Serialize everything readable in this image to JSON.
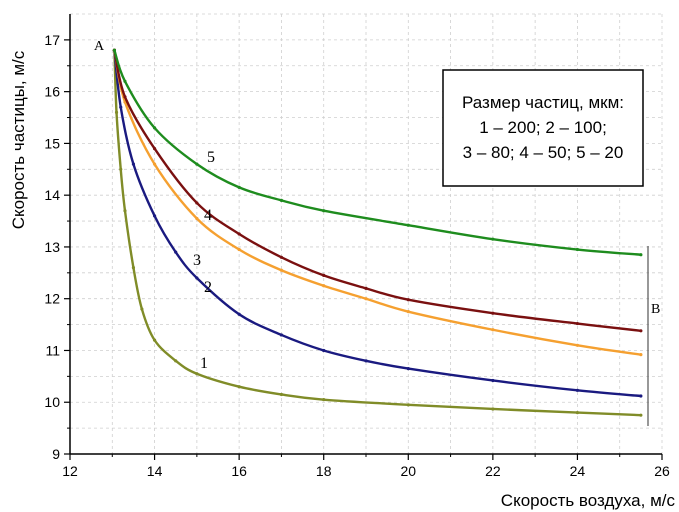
{
  "chart_data": {
    "type": "line",
    "xlabel": "Скорость воздуха, м/с",
    "ylabel": "Скорость частицы, м/с",
    "xlim": [
      12,
      26
    ],
    "ylim": [
      9,
      17.5
    ],
    "xticks": [
      12,
      14,
      16,
      18,
      20,
      22,
      24,
      26
    ],
    "yticks": [
      9,
      10,
      11,
      12,
      13,
      14,
      15,
      16,
      17
    ],
    "grid": true,
    "grid_style": "dashed",
    "legend_box": {
      "lines": [
        "Размер частиц, мкм:",
        "1 – 200; 2 – 100;",
        "3 – 80; 4 – 50; 5 – 20"
      ],
      "placement": "top-right"
    },
    "point_labels": {
      "start": "A",
      "end": "B"
    },
    "series": [
      {
        "label": "1",
        "color": "#808c28",
        "points": [
          [
            13.05,
            16.8
          ],
          [
            13.1,
            15.6
          ],
          [
            13.2,
            14.5
          ],
          [
            13.3,
            13.7
          ],
          [
            13.5,
            12.6
          ],
          [
            13.7,
            11.8
          ],
          [
            14.0,
            11.2
          ],
          [
            14.5,
            10.8
          ],
          [
            15.0,
            10.55
          ],
          [
            16.0,
            10.3
          ],
          [
            17.0,
            10.15
          ],
          [
            18.0,
            10.05
          ],
          [
            20.0,
            9.95
          ],
          [
            22.0,
            9.87
          ],
          [
            24.0,
            9.8
          ],
          [
            25.5,
            9.75
          ]
        ]
      },
      {
        "label": "2",
        "color": "#1a1a80",
        "points": [
          [
            13.05,
            16.8
          ],
          [
            13.2,
            15.7
          ],
          [
            13.5,
            14.6
          ],
          [
            14.0,
            13.6
          ],
          [
            14.5,
            12.9
          ],
          [
            15.0,
            12.4
          ],
          [
            16.0,
            11.7
          ],
          [
            17.0,
            11.3
          ],
          [
            18.0,
            11.0
          ],
          [
            19.0,
            10.8
          ],
          [
            20.0,
            10.65
          ],
          [
            22.0,
            10.42
          ],
          [
            24.0,
            10.23
          ],
          [
            25.5,
            10.12
          ]
        ]
      },
      {
        "label": "3",
        "color": "#f5a030",
        "points": [
          [
            13.05,
            16.8
          ],
          [
            13.3,
            15.8
          ],
          [
            14.0,
            14.6
          ],
          [
            15.0,
            13.55
          ],
          [
            16.0,
            12.95
          ],
          [
            17.0,
            12.55
          ],
          [
            18.0,
            12.25
          ],
          [
            19.0,
            12.0
          ],
          [
            20.0,
            11.75
          ],
          [
            22.0,
            11.4
          ],
          [
            24.0,
            11.1
          ],
          [
            25.5,
            10.92
          ]
        ]
      },
      {
        "label": "4",
        "color": "#7a1010",
        "points": [
          [
            13.05,
            16.8
          ],
          [
            13.3,
            15.9
          ],
          [
            14.0,
            14.9
          ],
          [
            15.0,
            13.85
          ],
          [
            16.0,
            13.25
          ],
          [
            17.0,
            12.8
          ],
          [
            18.0,
            12.45
          ],
          [
            19.0,
            12.2
          ],
          [
            20.0,
            11.98
          ],
          [
            22.0,
            11.72
          ],
          [
            24.0,
            11.52
          ],
          [
            25.5,
            11.38
          ]
        ]
      },
      {
        "label": "5",
        "color": "#1e8c1e",
        "points": [
          [
            13.05,
            16.8
          ],
          [
            13.3,
            16.2
          ],
          [
            14.0,
            15.3
          ],
          [
            15.0,
            14.6
          ],
          [
            16.0,
            14.15
          ],
          [
            17.0,
            13.9
          ],
          [
            18.0,
            13.7
          ],
          [
            20.0,
            13.42
          ],
          [
            22.0,
            13.15
          ],
          [
            24.0,
            12.95
          ],
          [
            25.5,
            12.85
          ]
        ]
      }
    ]
  }
}
